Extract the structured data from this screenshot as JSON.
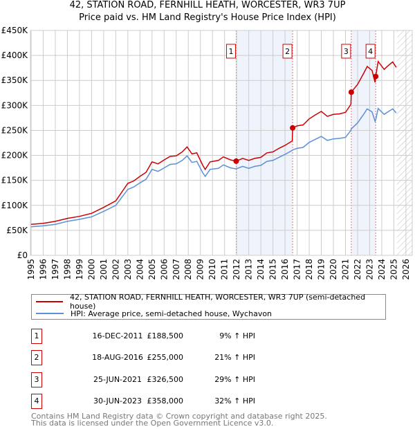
{
  "chart_data": {
    "type": "line",
    "title": "42, STATION ROAD, FERNHILL HEATH, WORCESTER, WR3 7UP",
    "subtitle": "Price paid vs. HM Land Registry's House Price Index (HPI)",
    "ylim": [
      0,
      450000
    ],
    "xlim": [
      1995,
      2026
    ],
    "y_ticks": [
      "£0",
      "£50K",
      "£100K",
      "£150K",
      "£200K",
      "£250K",
      "£300K",
      "£350K",
      "£400K",
      "£450K"
    ],
    "x_ticks": [
      "1995",
      "1996",
      "1997",
      "1998",
      "1999",
      "2000",
      "2001",
      "2002",
      "2003",
      "2004",
      "2005",
      "2006",
      "2007",
      "2008",
      "2009",
      "2010",
      "2011",
      "2012",
      "2013",
      "2014",
      "2015",
      "2016",
      "2017",
      "2018",
      "2019",
      "2020",
      "2021",
      "2022",
      "2023",
      "2024",
      "2025",
      "2026"
    ],
    "grid": true,
    "colors": {
      "property": "#cc0000",
      "hpi": "#5b8fd6",
      "shade": "#eef3fc",
      "marker_line": "#ff6666"
    },
    "series": [
      {
        "name": "42, STATION ROAD, FERNHILL HEATH, WORCESTER, WR3 7UP (semi-detached house)",
        "x": [
          1995,
          1996,
          1997,
          1998,
          1999,
          2000,
          2001,
          2002,
          2003,
          2003.5,
          2004,
          2004.5,
          2005,
          2005.5,
          2006,
          2006.5,
          2007,
          2007.5,
          2007.9,
          2008.3,
          2008.7,
          2009.2,
          2009.4,
          2009.8,
          2010.5,
          2010.9,
          2011.5,
          2011.96,
          2012.5,
          2013,
          2013.5,
          2014,
          2014.5,
          2015,
          2015.5,
          2016,
          2016.6,
          2016.63,
          2017,
          2017.5,
          2018,
          2018.5,
          2019,
          2019.5,
          2020,
          2020.5,
          2021,
          2021.45,
          2021.48,
          2022,
          2022.5,
          2022.8,
          2023.2,
          2023.45,
          2023.5,
          2023.7,
          2024.2,
          2024.5,
          2024.9,
          2025.2
        ],
        "values": [
          62,
          64,
          68,
          74,
          78,
          84,
          96,
          109,
          144,
          149,
          158,
          166,
          187,
          183,
          191,
          198,
          199,
          207,
          217,
          203,
          205,
          180,
          172,
          187,
          190,
          197,
          191,
          188.5,
          194,
          190,
          194,
          196,
          205,
          207,
          214,
          220,
          229,
          255,
          259,
          261,
          273,
          281,
          288,
          278,
          282,
          283,
          286,
          302,
          326.5,
          342,
          364,
          378,
          370,
          346,
          358,
          388,
          372,
          379,
          387,
          376
        ]
      },
      {
        "name": "HPI: Average price, semi-detached house, Wychavon",
        "x": [
          1995,
          1996,
          1997,
          1998,
          1999,
          2000,
          2001,
          2002,
          2003,
          2003.5,
          2004,
          2004.5,
          2005,
          2005.5,
          2006,
          2006.5,
          2007,
          2007.5,
          2007.9,
          2008.3,
          2008.7,
          2009.2,
          2009.4,
          2009.8,
          2010.5,
          2010.9,
          2011.5,
          2011.96,
          2012.5,
          2013,
          2013.5,
          2014,
          2014.5,
          2015,
          2015.5,
          2016,
          2016.6,
          2016.63,
          2017,
          2017.5,
          2018,
          2018.5,
          2019,
          2019.5,
          2020,
          2020.5,
          2021,
          2021.45,
          2021.48,
          2022,
          2022.5,
          2022.8,
          2023.2,
          2023.45,
          2023.5,
          2023.7,
          2024.2,
          2024.5,
          2024.9,
          2025.2
        ],
        "values": [
          57,
          59,
          62,
          68,
          72,
          77,
          88,
          100,
          132,
          137,
          145,
          152,
          172,
          168,
          175,
          182,
          183,
          190,
          199,
          186,
          188,
          165,
          158,
          172,
          174,
          181,
          175,
          173,
          178,
          174,
          178,
          180,
          188,
          190,
          196,
          202,
          210,
          211,
          214,
          216,
          226,
          232,
          238,
          230,
          233,
          234,
          236,
          250,
          253,
          265,
          282,
          293,
          287,
          268,
          271,
          294,
          282,
          287,
          293,
          285
        ]
      }
    ],
    "value_unit": "£K",
    "sales": [
      {
        "label": "1",
        "x": 2011.96,
        "value": 188.5
      },
      {
        "label": "2",
        "x": 2016.63,
        "value": 255
      },
      {
        "label": "3",
        "x": 2021.48,
        "value": 326.5
      },
      {
        "label": "4",
        "x": 2023.5,
        "value": 358
      }
    ],
    "forecast_from": 2025.25
  },
  "legend": {
    "property": "42, STATION ROAD, FERNHILL HEATH, WORCESTER, WR3 7UP (semi-detached house)",
    "hpi": "HPI: Average price, semi-detached house, Wychavon"
  },
  "transactions": [
    {
      "num": "1",
      "date": "16-DEC-2011",
      "price": "£188,500",
      "hpi": "9% ↑ HPI"
    },
    {
      "num": "2",
      "date": "18-AUG-2016",
      "price": "£255,000",
      "hpi": "21% ↑ HPI"
    },
    {
      "num": "3",
      "date": "25-JUN-2021",
      "price": "£326,500",
      "hpi": "29% ↑ HPI"
    },
    {
      "num": "4",
      "date": "30-JUN-2023",
      "price": "£358,000",
      "hpi": "32% ↑ HPI"
    }
  ],
  "footer": {
    "line1": "Contains HM Land Registry data © Crown copyright and database right 2025.",
    "line2": "This data is licensed under the Open Government Licence v3.0."
  }
}
